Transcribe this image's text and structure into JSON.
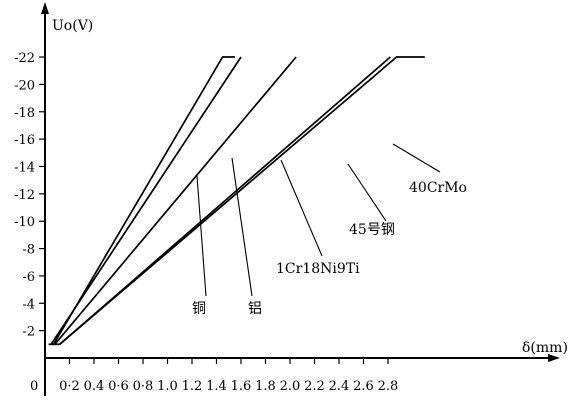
{
  "chart_data": {
    "type": "line",
    "ylabel": "Uo(V)",
    "xlabel": "δ(mm)",
    "x_ticks": [
      "0",
      "0·2",
      "0.4",
      "0·6",
      "0·8",
      "1.0",
      "1.2",
      "1.4",
      "1.6",
      "1.8",
      "2.0",
      "2.2",
      "2.4",
      "2.6",
      "2.8"
    ],
    "y_ticks": [
      "-2",
      "-4",
      "-6",
      "-8",
      "-10",
      "-12",
      "-14",
      "-16",
      "-18",
      "-20",
      "-22"
    ],
    "x_tick_values": [
      0,
      0.2,
      0.4,
      0.6,
      0.8,
      1.0,
      1.2,
      1.4,
      1.6,
      1.8,
      2.0,
      2.2,
      2.4,
      2.6,
      2.8
    ],
    "y_tick_values": [
      -2,
      -4,
      -6,
      -8,
      -10,
      -12,
      -14,
      -16,
      -18,
      -20,
      -22
    ],
    "xlim": [
      0,
      2.95
    ],
    "ylim": [
      0,
      -23.5
    ],
    "series": [
      {
        "name": "铜",
        "x": [
          0.07,
          1.45,
          1.55
        ],
        "y": [
          -1,
          -22,
          -22
        ]
      },
      {
        "name": "铝",
        "x": [
          0.05,
          1.6
        ],
        "y": [
          -1,
          -22
        ]
      },
      {
        "name": "1Cr18Ni9Ti",
        "x": [
          0.08,
          2.05
        ],
        "y": [
          -1,
          -22
        ]
      },
      {
        "name": "45号钢",
        "x": [
          0.12,
          2.82
        ],
        "y": [
          -1,
          -22
        ]
      },
      {
        "name": "40CrMo",
        "x": [
          0.12,
          2.87,
          3.1
        ],
        "y": [
          -1,
          -22,
          -22
        ]
      }
    ],
    "annotations": [
      {
        "text": "铜",
        "series": 0
      },
      {
        "text": "铝",
        "series": 1
      },
      {
        "text": "1Cr18Ni9Ti",
        "series": 2
      },
      {
        "text": "45号钢",
        "series": 3
      },
      {
        "text": "40CrMo",
        "series": 4
      }
    ]
  }
}
